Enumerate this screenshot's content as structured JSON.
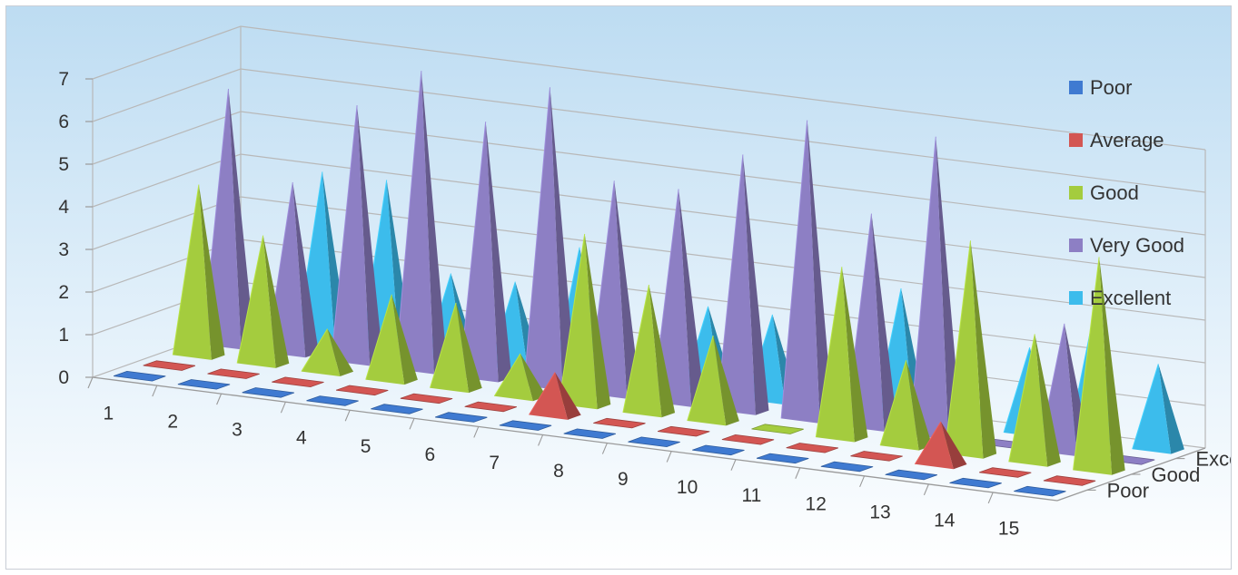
{
  "chart_data": {
    "type": "bar",
    "variant": "3d-pyramid",
    "title": "",
    "xlabel": "",
    "ylabel": "",
    "categories": [
      "1",
      "2",
      "3",
      "4",
      "5",
      "6",
      "7",
      "8",
      "9",
      "10",
      "11",
      "12",
      "13",
      "14",
      "15"
    ],
    "ylim": [
      0,
      7
    ],
    "yticks": [
      "0",
      "1",
      "2",
      "3",
      "4",
      "5",
      "6",
      "7"
    ],
    "grid": true,
    "legend_position": "right",
    "series": [
      {
        "name": "Poor",
        "color": "#3f7ad1",
        "values": [
          0,
          0,
          0,
          0,
          0,
          0,
          0,
          0,
          0,
          0,
          0,
          0,
          0,
          0,
          0
        ]
      },
      {
        "name": "Average",
        "color": "#d35653",
        "values": [
          0,
          0,
          0,
          0,
          0,
          0,
          1,
          0,
          0,
          0,
          0,
          0,
          1,
          0,
          0
        ]
      },
      {
        "name": "Good",
        "color": "#a4cc3e",
        "values": [
          4,
          3,
          1,
          2,
          2,
          1,
          4,
          3,
          2,
          0,
          4,
          2,
          5,
          3,
          5
        ]
      },
      {
        "name": "Very Good",
        "color": "#8d7fc4",
        "values": [
          6,
          4,
          6,
          7,
          6,
          7,
          5,
          5,
          6,
          7,
          5,
          7,
          0,
          3,
          0
        ]
      },
      {
        "name": "Excellent",
        "color": "#3cbcec",
        "values": [
          0,
          4,
          4,
          2,
          2,
          3,
          0,
          2,
          2,
          0,
          3,
          1,
          2,
          3,
          2
        ]
      }
    ],
    "depth_labels": [
      "Excelle...",
      "Good",
      "Poor"
    ]
  }
}
